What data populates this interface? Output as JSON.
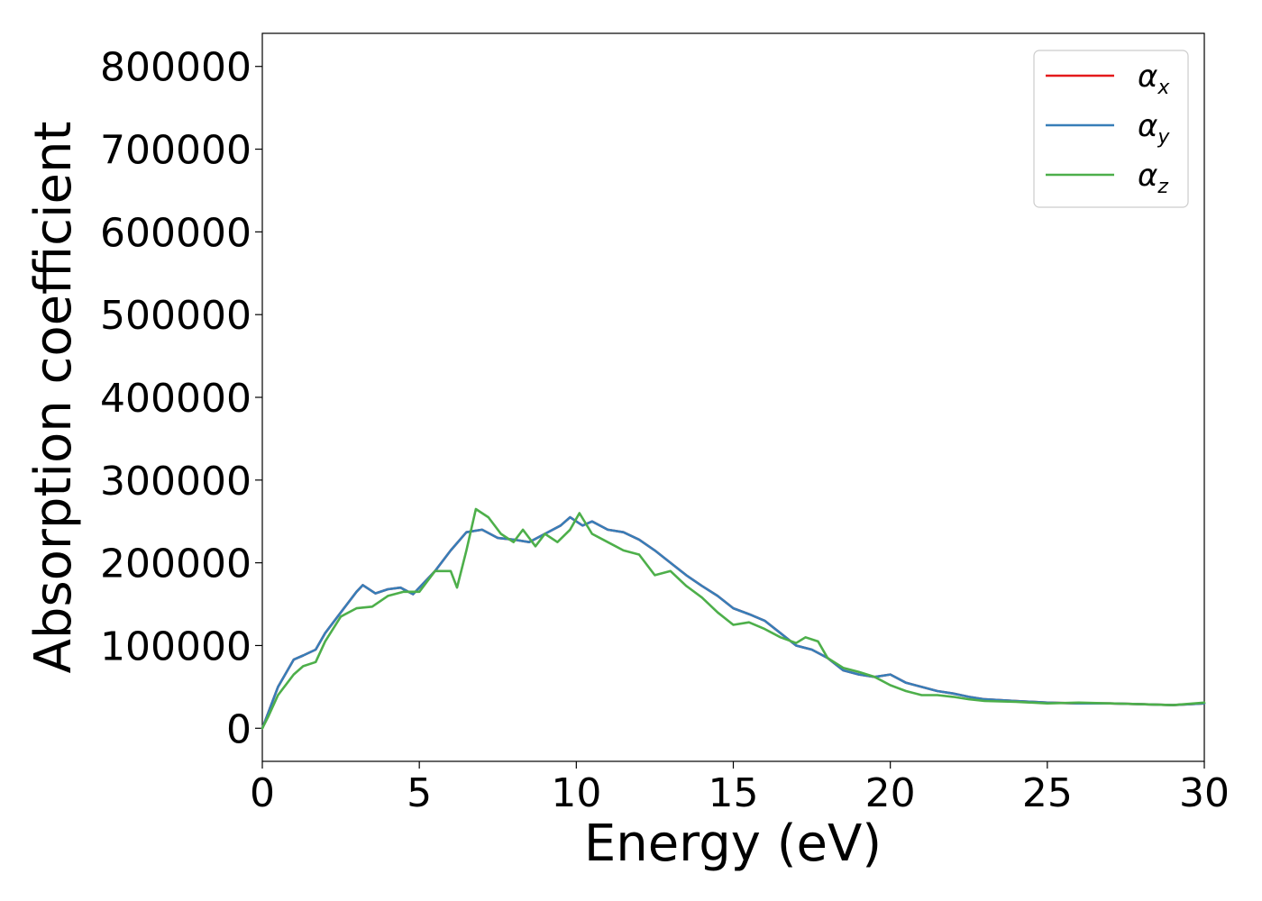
{
  "chart_data": {
    "type": "line",
    "xlabel": "Energy (eV)",
    "ylabel": "Absorption coefficient",
    "xlim": [
      0,
      30
    ],
    "ylim": [
      -40000,
      840000
    ],
    "xticks": [
      0,
      5,
      10,
      15,
      20,
      25,
      30
    ],
    "xtick_labels": [
      "0",
      "5",
      "10",
      "15",
      "20",
      "25",
      "30"
    ],
    "yticks": [
      0,
      100000,
      200000,
      300000,
      400000,
      500000,
      600000,
      700000,
      800000
    ],
    "ytick_labels": [
      "0",
      "100000",
      "200000",
      "300000",
      "400000",
      "500000",
      "600000",
      "700000",
      "800000"
    ],
    "grid": false,
    "legend_position": "top-right",
    "series": [
      {
        "name": "αx",
        "legend_main": "α",
        "legend_sub": "x",
        "color": "#e41a1c",
        "x": [
          0,
          0.2,
          0.5,
          1.0,
          1.3,
          1.7,
          2.0,
          2.5,
          3.0,
          3.2,
          3.6,
          4.0,
          4.4,
          4.8,
          5.0,
          5.5,
          6.0,
          6.5,
          7.0,
          7.5,
          8.0,
          8.5,
          9.0,
          9.5,
          9.8,
          10.2,
          10.5,
          11.0,
          11.5,
          12.0,
          12.5,
          13.0,
          13.5,
          14.0,
          14.5,
          15.0,
          15.5,
          16.0,
          16.5,
          17.0,
          17.5,
          18.0,
          18.5,
          19.0,
          19.5,
          20.0,
          20.5,
          21.0,
          21.5,
          22.0,
          22.5,
          23.0,
          24.0,
          25.0,
          26.0,
          27.0,
          28.0,
          29.0,
          30.0
        ],
        "y": [
          0,
          20000,
          50000,
          83000,
          88000,
          95000,
          115000,
          140000,
          165000,
          173000,
          163000,
          168000,
          170000,
          162000,
          170000,
          190000,
          215000,
          237000,
          240000,
          230000,
          228000,
          225000,
          235000,
          245000,
          255000,
          245000,
          250000,
          240000,
          237000,
          228000,
          215000,
          200000,
          185000,
          172000,
          160000,
          145000,
          138000,
          130000,
          115000,
          100000,
          95000,
          85000,
          70000,
          65000,
          62000,
          65000,
          55000,
          50000,
          45000,
          42000,
          38000,
          35000,
          33000,
          31000,
          30000,
          30000,
          29000,
          28000,
          30000
        ]
      },
      {
        "name": "αy",
        "legend_main": "α",
        "legend_sub": "y",
        "color": "#377eb8",
        "x": [
          0,
          0.2,
          0.5,
          1.0,
          1.3,
          1.7,
          2.0,
          2.5,
          3.0,
          3.2,
          3.6,
          4.0,
          4.4,
          4.8,
          5.0,
          5.5,
          6.0,
          6.5,
          7.0,
          7.5,
          8.0,
          8.5,
          9.0,
          9.5,
          9.8,
          10.2,
          10.5,
          11.0,
          11.5,
          12.0,
          12.5,
          13.0,
          13.5,
          14.0,
          14.5,
          15.0,
          15.5,
          16.0,
          16.5,
          17.0,
          17.5,
          18.0,
          18.5,
          19.0,
          19.5,
          20.0,
          20.5,
          21.0,
          21.5,
          22.0,
          22.5,
          23.0,
          24.0,
          25.0,
          26.0,
          27.0,
          28.0,
          29.0,
          30.0
        ],
        "y": [
          0,
          20000,
          50000,
          83000,
          88000,
          95000,
          115000,
          140000,
          165000,
          173000,
          163000,
          168000,
          170000,
          162000,
          170000,
          190000,
          215000,
          237000,
          240000,
          230000,
          228000,
          225000,
          235000,
          245000,
          255000,
          245000,
          250000,
          240000,
          237000,
          228000,
          215000,
          200000,
          185000,
          172000,
          160000,
          145000,
          138000,
          130000,
          115000,
          100000,
          95000,
          85000,
          70000,
          65000,
          62000,
          65000,
          55000,
          50000,
          45000,
          42000,
          38000,
          35000,
          33000,
          31000,
          30000,
          30000,
          29000,
          28000,
          30000
        ]
      },
      {
        "name": "αz",
        "legend_main": "α",
        "legend_sub": "z",
        "color": "#4daf4a",
        "x": [
          0,
          0.2,
          0.5,
          1.0,
          1.3,
          1.7,
          2.0,
          2.5,
          3.0,
          3.5,
          4.0,
          4.5,
          5.0,
          5.5,
          6.0,
          6.2,
          6.5,
          6.8,
          7.2,
          7.6,
          8.0,
          8.3,
          8.7,
          9.0,
          9.4,
          9.8,
          10.1,
          10.5,
          11.0,
          11.5,
          12.0,
          12.5,
          13.0,
          13.5,
          14.0,
          14.5,
          15.0,
          15.5,
          16.0,
          16.5,
          17.0,
          17.3,
          17.7,
          18.0,
          18.5,
          19.0,
          19.5,
          20.0,
          20.5,
          21.0,
          21.5,
          22.0,
          22.5,
          23.0,
          24.0,
          25.0,
          26.0,
          27.0,
          28.0,
          29.0,
          30.0
        ],
        "y": [
          0,
          15000,
          40000,
          65000,
          75000,
          80000,
          105000,
          135000,
          145000,
          147000,
          160000,
          165000,
          165000,
          190000,
          190000,
          170000,
          215000,
          265000,
          255000,
          235000,
          225000,
          240000,
          220000,
          235000,
          225000,
          240000,
          260000,
          235000,
          225000,
          215000,
          210000,
          185000,
          190000,
          172000,
          158000,
          140000,
          125000,
          128000,
          120000,
          110000,
          103000,
          110000,
          105000,
          85000,
          73000,
          68000,
          62000,
          52000,
          45000,
          40000,
          40000,
          38000,
          35000,
          33000,
          32000,
          30000,
          31000,
          30000,
          29000,
          28000,
          31000
        ]
      }
    ]
  }
}
